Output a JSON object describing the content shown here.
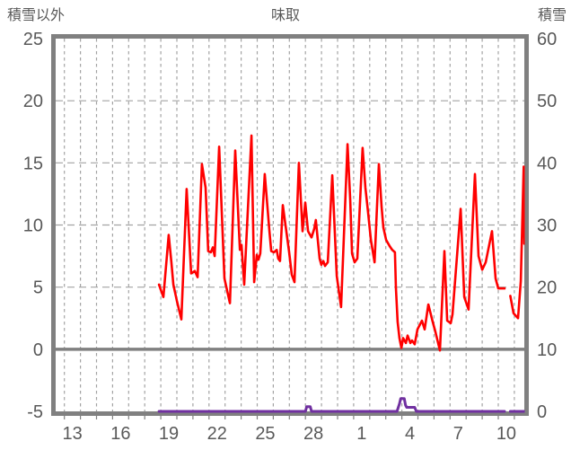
{
  "header": {
    "left_axis_title": "積雪以外",
    "chart_title": "味取",
    "right_axis_title": "積雪"
  },
  "colors": {
    "background": "#ffffff",
    "plot_border": "#808080",
    "gridline": "#a3a3a3",
    "zero_line": "#808080",
    "axis_label": "#595959",
    "temperature_line": "#ff0000",
    "snow_line": "#7030a0"
  },
  "chart_data": {
    "type": "line",
    "title": "味取",
    "grid": true,
    "legend_position": "none",
    "left_axis": {
      "title": "積雪以外",
      "range": [
        -5,
        25
      ],
      "ticks": [
        25,
        20,
        15,
        10,
        5,
        0,
        -5
      ],
      "dashed_gridlines_at": [
        20,
        15,
        10,
        5
      ],
      "solid_line_at": 0
    },
    "right_axis": {
      "title": "積雪",
      "range": [
        0,
        60
      ],
      "ticks": [
        60,
        50,
        40,
        30,
        20,
        10,
        0
      ]
    },
    "x_axis": {
      "tick_labels": [
        "13",
        "16",
        "19",
        "22",
        "25",
        "28",
        "1",
        "4",
        "7",
        "10"
      ],
      "tick_positions_days": [
        0.5,
        3.5,
        6.5,
        9.5,
        12.5,
        15.5,
        18.5,
        21.5,
        24.5,
        27.5
      ],
      "gridline_day_range": [
        0,
        28
      ],
      "domain_days": [
        -0.54,
        28.62
      ],
      "data_gap_days": [
        27.39,
        27.75
      ]
    },
    "series": [
      {
        "name": "積雪以外",
        "axis": "left",
        "color": "#ff0000",
        "segments": [
          [
            [
              5.89,
              5.2
            ],
            [
              6.05,
              4.6
            ],
            [
              6.16,
              4.2
            ],
            [
              6.49,
              9.2
            ],
            [
              6.66,
              7.0
            ],
            [
              6.78,
              5.2
            ],
            [
              7.0,
              3.9
            ],
            [
              7.28,
              2.4
            ],
            [
              7.61,
              12.9
            ],
            [
              7.89,
              6.1
            ],
            [
              8.12,
              6.3
            ],
            [
              8.29,
              5.8
            ],
            [
              8.56,
              14.9
            ],
            [
              8.79,
              13.0
            ],
            [
              8.95,
              7.9
            ],
            [
              9.12,
              7.8
            ],
            [
              9.24,
              8.2
            ],
            [
              9.35,
              7.5
            ],
            [
              9.63,
              16.3
            ],
            [
              9.96,
              5.7
            ],
            [
              10.3,
              3.7
            ],
            [
              10.63,
              16.0
            ],
            [
              10.92,
              8.0
            ],
            [
              11.02,
              8.4
            ],
            [
              11.19,
              5.2
            ],
            [
              11.64,
              17.2
            ],
            [
              11.81,
              5.4
            ],
            [
              11.97,
              7.6
            ],
            [
              12.08,
              7.2
            ],
            [
              12.19,
              7.7
            ],
            [
              12.47,
              14.1
            ],
            [
              12.76,
              9.5
            ],
            [
              12.87,
              7.9
            ],
            [
              13.04,
              7.8
            ],
            [
              13.21,
              8.0
            ],
            [
              13.31,
              7.3
            ],
            [
              13.42,
              7.1
            ],
            [
              13.59,
              11.6
            ],
            [
              13.98,
              7.9
            ],
            [
              14.15,
              6.0
            ],
            [
              14.32,
              5.4
            ],
            [
              14.59,
              15.0
            ],
            [
              14.82,
              9.5
            ],
            [
              14.99,
              11.8
            ],
            [
              15.16,
              9.5
            ],
            [
              15.38,
              9.0
            ],
            [
              15.55,
              9.7
            ],
            [
              15.65,
              10.4
            ],
            [
              15.88,
              7.3
            ],
            [
              15.99,
              6.8
            ],
            [
              16.11,
              7.1
            ],
            [
              16.22,
              6.7
            ],
            [
              16.39,
              7.0
            ],
            [
              16.67,
              14.0
            ],
            [
              16.95,
              5.9
            ],
            [
              17.22,
              3.4
            ],
            [
              17.62,
              16.5
            ],
            [
              17.79,
              12.0
            ],
            [
              17.9,
              7.7
            ],
            [
              18.06,
              7.0
            ],
            [
              18.23,
              7.3
            ],
            [
              18.56,
              16.2
            ],
            [
              18.73,
              13.0
            ],
            [
              18.9,
              11.0
            ],
            [
              19.07,
              8.8
            ],
            [
              19.3,
              7.0
            ],
            [
              19.57,
              14.9
            ],
            [
              19.74,
              11.5
            ],
            [
              19.85,
              9.8
            ],
            [
              20.02,
              8.8
            ],
            [
              20.24,
              8.3
            ],
            [
              20.4,
              8.0
            ],
            [
              20.57,
              7.8
            ],
            [
              20.63,
              4.9
            ],
            [
              20.74,
              2.2
            ],
            [
              20.85,
              0.9
            ],
            [
              20.97,
              0.1
            ],
            [
              21.08,
              0.9
            ],
            [
              21.25,
              0.5
            ],
            [
              21.36,
              1.1
            ],
            [
              21.53,
              0.5
            ],
            [
              21.63,
              0.7
            ],
            [
              21.8,
              0.4
            ],
            [
              21.97,
              1.6
            ],
            [
              22.25,
              2.3
            ],
            [
              22.42,
              1.6
            ],
            [
              22.65,
              3.6
            ],
            [
              22.92,
              2.2
            ],
            [
              23.09,
              1.4
            ],
            [
              23.37,
              -0.1
            ],
            [
              23.65,
              7.9
            ],
            [
              23.82,
              2.3
            ],
            [
              24.04,
              2.1
            ],
            [
              24.15,
              2.8
            ],
            [
              24.66,
              11.3
            ],
            [
              24.88,
              4.2
            ],
            [
              25.15,
              3.2
            ],
            [
              25.55,
              14.1
            ],
            [
              25.77,
              7.5
            ],
            [
              26.0,
              6.4
            ],
            [
              26.22,
              7.0
            ],
            [
              26.61,
              9.5
            ],
            [
              26.83,
              5.7
            ],
            [
              27.0,
              4.9
            ],
            [
              27.39,
              4.9
            ]
          ],
          [
            [
              27.75,
              4.3
            ],
            [
              27.95,
              2.9
            ],
            [
              28.23,
              2.5
            ],
            [
              28.4,
              5.5
            ],
            [
              28.58,
              14.7
            ],
            [
              28.72,
              8.5
            ]
          ]
        ]
      },
      {
        "name": "積雪",
        "axis": "right",
        "color": "#7030a0",
        "segments": [
          [
            [
              5.89,
              0
            ],
            [
              15.0,
              0
            ],
            [
              15.08,
              0.75
            ],
            [
              15.3,
              0.75
            ],
            [
              15.38,
              0
            ],
            [
              20.7,
              0
            ],
            [
              20.85,
              1.2
            ],
            [
              20.93,
              2.05
            ],
            [
              21.15,
              2.05
            ],
            [
              21.23,
              1.0
            ],
            [
              21.3,
              0.65
            ],
            [
              21.8,
              0.65
            ],
            [
              21.9,
              0
            ],
            [
              27.39,
              0
            ]
          ],
          [
            [
              27.75,
              0
            ],
            [
              28.68,
              0
            ]
          ]
        ]
      }
    ]
  }
}
